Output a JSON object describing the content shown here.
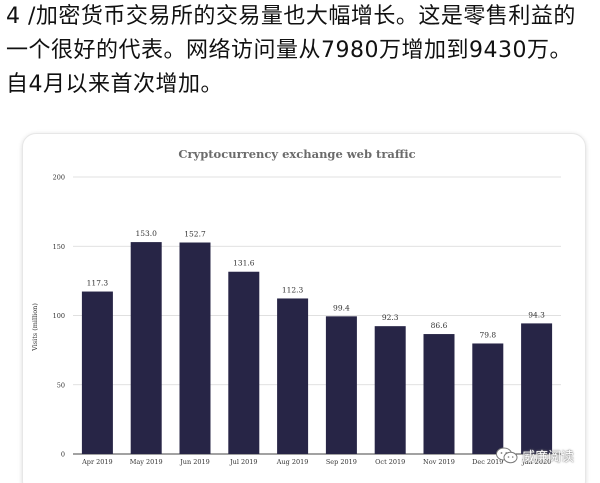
{
  "post": {
    "text": "4 /加密货币交易所的交易量也大幅增长。这是零售利益的一个很好的代表。网络访问量从7980万增加到9430万。自4月以来首次增加。"
  },
  "chart_data": {
    "type": "bar",
    "title": "Cryptocurrency exchange web traffic",
    "xlabel": "",
    "ylabel": "Visits (million)",
    "ylim": [
      0,
      200
    ],
    "yticks": [
      0,
      50,
      100,
      150,
      200
    ],
    "grid": true,
    "categories": [
      "Apr 2019",
      "May 2019",
      "Jun 2019",
      "Jul 2019",
      "Aug 2019",
      "Sep 2019",
      "Oct 2019",
      "Nov 2019",
      "Dec 2019",
      "Jan 2020"
    ],
    "values": [
      117.3,
      153.0,
      152.7,
      131.6,
      112.3,
      99.4,
      92.3,
      86.6,
      79.8,
      94.3
    ],
    "value_labels": [
      "117.3",
      "153.0",
      "152.7",
      "131.6",
      "112.3",
      "99.4",
      "92.3",
      "86.6",
      "79.8",
      "94.3"
    ],
    "bar_color": "#272546"
  },
  "watermark": {
    "text": "威廉阅读",
    "icon": "wechat-icon"
  }
}
